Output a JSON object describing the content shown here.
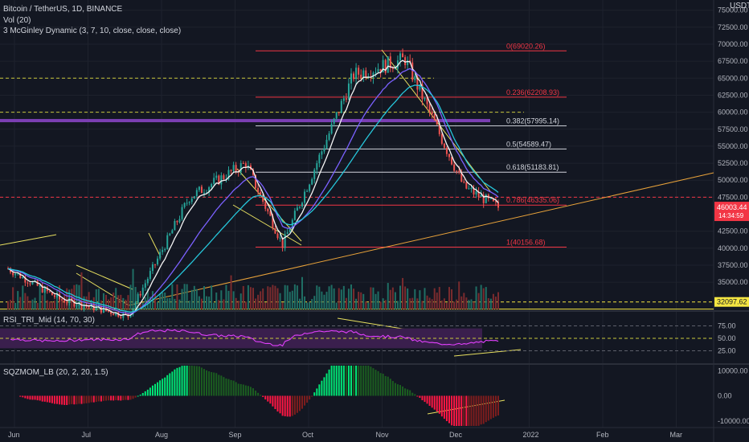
{
  "header": {
    "symbol": "Bitcoin / TetherUS, 1D, BINANCE",
    "vol": "Vol (20)",
    "mcginley": "3 McGinley Dynamic (3, 7, 10, close, close, close)",
    "currency": "USDT"
  },
  "price_axis": {
    "ticks": [
      "75000.00",
      "72500.00",
      "70000.00",
      "67500.00",
      "65000.00",
      "62500.00",
      "60000.00",
      "57500.00",
      "55000.00",
      "52500.00",
      "50000.00",
      "47500.00",
      "42500.00",
      "40000.00",
      "37500.00",
      "35000.00"
    ],
    "current_price": "46003.44",
    "countdown": "14:34:59",
    "marker_price": "32097.62",
    "current_color": "#f23645",
    "marker_color": "#f5e642"
  },
  "fib_levels": [
    {
      "ratio": "0",
      "price": "69020.26",
      "label": "0(69020.26)",
      "color": "#f23645"
    },
    {
      "ratio": "0.236",
      "price": "62208.93",
      "label": "0.236(62208.93)",
      "color": "#f23645"
    },
    {
      "ratio": "0.382",
      "price": "57995.14",
      "label": "0.382(57995.14)",
      "color": "#d1d4dc"
    },
    {
      "ratio": "0.5",
      "price": "54589.47",
      "label": "0.5(54589.47)",
      "color": "#d1d4dc"
    },
    {
      "ratio": "0.618",
      "price": "51183.81",
      "label": "0.618(51183.81)",
      "color": "#d1d4dc"
    },
    {
      "ratio": "0.786",
      "price": "46335.06",
      "label": "0.786(46335.06)",
      "color": "#f23645"
    },
    {
      "ratio": "1",
      "price": "40156.68",
      "label": "1(40156.68)",
      "color": "#f23645"
    }
  ],
  "rsi": {
    "title": "RSI_TRI_Mid (14, 70, 30)",
    "ticks": [
      "75.00",
      "50.00",
      "25.00"
    ]
  },
  "sqz": {
    "title": "SQZMOM_LB (20, 2, 20, 1.5)",
    "ticks": [
      "10000.00",
      "0.00",
      "-10000.00"
    ]
  },
  "time_axis": {
    "labels": [
      "Jun",
      "Jul",
      "Aug",
      "Sep",
      "Oct",
      "Nov",
      "Dec",
      "2022",
      "Feb",
      "Mar"
    ]
  },
  "chart_data": {
    "type": "candlestick",
    "title": "Bitcoin / TetherUS, 1D, BINANCE",
    "ylim": [
      31000,
      76500
    ],
    "key_points": [
      {
        "date": "2021-06-01",
        "close": 37000
      },
      {
        "date": "2021-06-22",
        "close": 32500
      },
      {
        "date": "2021-07-20",
        "close": 30000
      },
      {
        "date": "2021-08-14",
        "close": 47500
      },
      {
        "date": "2021-09-06",
        "close": 52500
      },
      {
        "date": "2021-09-21",
        "close": 40500
      },
      {
        "date": "2021-10-20",
        "close": 65500
      },
      {
        "date": "2021-11-10",
        "close": 67800
      },
      {
        "date": "2021-12-04",
        "close": 49000
      },
      {
        "date": "2021-12-18",
        "close": 46003.44
      }
    ],
    "colors": {
      "up": "#26a69a",
      "down": "#ef5350"
    },
    "rsi_range": [
      0,
      100
    ],
    "sqz_range": [
      -12000,
      12000
    ]
  }
}
